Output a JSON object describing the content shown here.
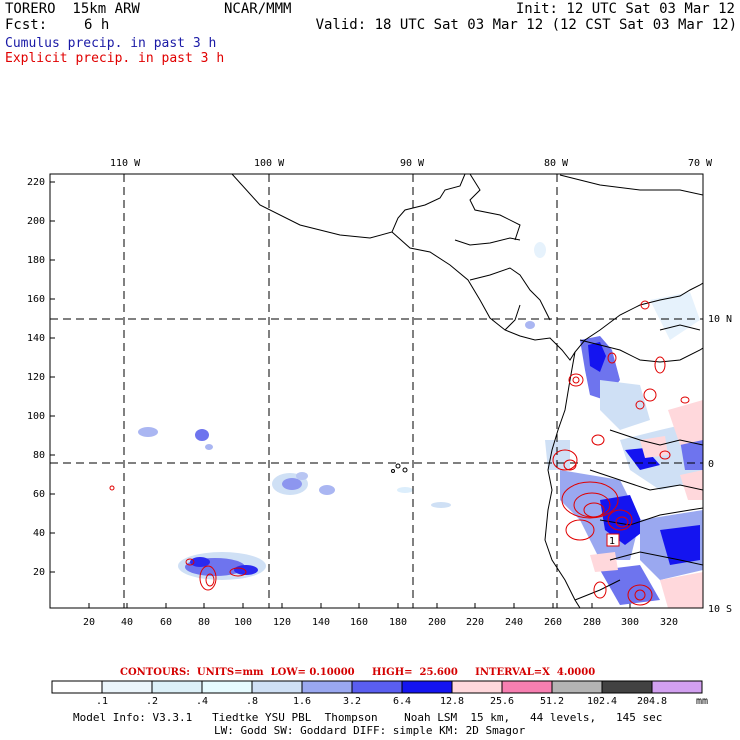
{
  "header": {
    "model": "TORERO  15km ARW",
    "org": "NCAR/MMM",
    "init": "Init: 12 UTC Sat 03 Mar 12",
    "fcst_label": "Fcst:",
    "fcst_value": "6 h",
    "valid": "Valid: 18 UTC Sat 03 Mar 12 (12 CST Sat 03 Mar 12)",
    "legend_cumulus": "Cumulus precip. in past 3 h",
    "legend_explicit": "Explicit precip. in past 3 h"
  },
  "map": {
    "lon_labels": [
      "110 W",
      "100 W",
      "90 W",
      "80 W",
      "70 W"
    ],
    "lat_labels": [
      "10 N",
      "0",
      "10 S"
    ],
    "y_ticks": [
      "220",
      "200",
      "180",
      "160",
      "140",
      "120",
      "100",
      "80",
      "60",
      "40",
      "20"
    ],
    "x_ticks": [
      "20",
      "40",
      "60",
      "80",
      "100",
      "120",
      "140",
      "160",
      "180",
      "200",
      "220",
      "240",
      "260",
      "280",
      "300",
      "320"
    ],
    "max_label": "1"
  },
  "contours": {
    "text": "CONTOURS:  UNITS=mm  LOW= 0.10000     HIGH=  25.600     INTERVAL=X  4.0000"
  },
  "colorbar": {
    "unit": "mm",
    "labels": [
      ".1",
      ".2",
      ".4",
      ".8",
      "1.6",
      "3.2",
      "6.4",
      "12.8",
      "25.6",
      "51.2",
      "102.4",
      "204.8"
    ],
    "colors": [
      "#ffffff",
      "#ebf5fb",
      "#dcf0f8",
      "#e6fbff",
      "#cfe0f5",
      "#9aa8f0",
      "#5a5ef0",
      "#1414f0",
      "#ffd8dc",
      "#f77fb1",
      "#b4b4b4",
      "#424242",
      "#d2a0f0"
    ]
  },
  "footer": {
    "line1": "Model Info: V3.3.1   Tiedtke YSU PBL  Thompson    Noah LSM  15 km,   44 levels,   145 sec",
    "line2": "LW: Godd SW: Goddard DIFF: simple KM: 2D Smagor"
  }
}
